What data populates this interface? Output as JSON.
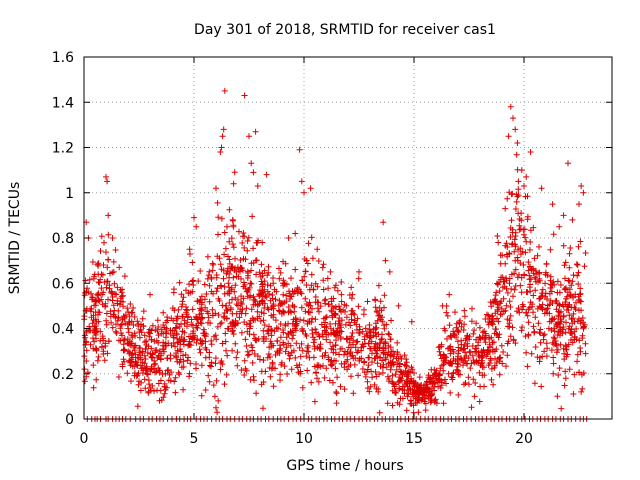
{
  "chart_data": {
    "type": "scatter",
    "title": "Day 301 of 2018, SRMTID for receiver cas1",
    "xlabel": "GPS time / hours",
    "ylabel": "SRMTID / TECUs",
    "xlim": [
      0,
      24
    ],
    "ylim": [
      0,
      1.6
    ],
    "xticks": [
      0,
      5,
      10,
      15,
      20
    ],
    "xtick_labels": [
      "0",
      "5",
      "10",
      "15",
      "20"
    ],
    "yticks": [
      0,
      0.2,
      0.4,
      0.6,
      0.8,
      1.0,
      1.2,
      1.4,
      1.6
    ],
    "ytick_labels": [
      "0",
      "0.2",
      "0.4",
      "0.6",
      "0.8",
      "1",
      "1.2",
      "1.4",
      "1.6"
    ],
    "grid": true,
    "marker": "+",
    "color": "#dd0000",
    "series": [
      {
        "name": "SRMTID",
        "profile": [
          [
            0.0,
            0.4,
            0.12
          ],
          [
            0.5,
            0.42,
            0.12
          ],
          [
            1.0,
            0.5,
            0.15
          ],
          [
            1.5,
            0.5,
            0.13
          ],
          [
            2.0,
            0.33,
            0.09
          ],
          [
            2.5,
            0.3,
            0.09
          ],
          [
            3.0,
            0.27,
            0.09
          ],
          [
            3.5,
            0.28,
            0.09
          ],
          [
            4.0,
            0.32,
            0.1
          ],
          [
            4.5,
            0.38,
            0.12
          ],
          [
            5.0,
            0.45,
            0.13
          ],
          [
            5.5,
            0.4,
            0.14
          ],
          [
            6.0,
            0.5,
            0.2
          ],
          [
            6.5,
            0.55,
            0.18
          ],
          [
            7.0,
            0.55,
            0.18
          ],
          [
            7.5,
            0.52,
            0.17
          ],
          [
            8.0,
            0.48,
            0.15
          ],
          [
            8.5,
            0.42,
            0.14
          ],
          [
            9.0,
            0.45,
            0.14
          ],
          [
            9.5,
            0.45,
            0.15
          ],
          [
            10.0,
            0.48,
            0.15
          ],
          [
            10.5,
            0.42,
            0.13
          ],
          [
            11.0,
            0.4,
            0.12
          ],
          [
            11.5,
            0.38,
            0.12
          ],
          [
            12.0,
            0.36,
            0.11
          ],
          [
            12.5,
            0.33,
            0.1
          ],
          [
            13.0,
            0.3,
            0.09
          ],
          [
            13.5,
            0.38,
            0.14
          ],
          [
            14.0,
            0.25,
            0.08
          ],
          [
            14.5,
            0.17,
            0.06
          ],
          [
            15.0,
            0.13,
            0.04
          ],
          [
            15.5,
            0.11,
            0.03
          ],
          [
            16.0,
            0.16,
            0.05
          ],
          [
            16.5,
            0.32,
            0.09
          ],
          [
            17.0,
            0.3,
            0.09
          ],
          [
            17.5,
            0.3,
            0.09
          ],
          [
            18.0,
            0.28,
            0.08
          ],
          [
            18.5,
            0.32,
            0.09
          ],
          [
            19.0,
            0.55,
            0.18
          ],
          [
            19.5,
            0.75,
            0.2
          ],
          [
            20.0,
            0.7,
            0.2
          ],
          [
            20.5,
            0.55,
            0.17
          ],
          [
            21.0,
            0.45,
            0.15
          ],
          [
            21.5,
            0.42,
            0.15
          ],
          [
            22.0,
            0.45,
            0.15
          ],
          [
            22.5,
            0.5,
            0.17
          ],
          [
            22.8,
            0.5,
            0.17
          ]
        ],
        "outliers": [
          [
            0.1,
            0.87
          ],
          [
            0.2,
            0.8
          ],
          [
            0.6,
            0.55
          ],
          [
            1.0,
            1.07
          ],
          [
            1.05,
            1.05
          ],
          [
            1.1,
            0.9
          ],
          [
            1.3,
            0.8
          ],
          [
            1.6,
            0.67
          ],
          [
            3.0,
            0.55
          ],
          [
            3.6,
            0.47
          ],
          [
            4.8,
            0.75
          ],
          [
            5.0,
            0.89
          ],
          [
            5.1,
            0.85
          ],
          [
            5.8,
            0.25
          ],
          [
            5.9,
            0.15
          ],
          [
            5.95,
            0.1
          ],
          [
            6.0,
            0.05
          ],
          [
            6.05,
            0.03
          ],
          [
            6.1,
            0.08
          ],
          [
            6.0,
            1.02
          ],
          [
            6.2,
            1.18
          ],
          [
            6.25,
            1.2
          ],
          [
            6.3,
            1.25
          ],
          [
            6.35,
            1.28
          ],
          [
            6.4,
            1.45
          ],
          [
            6.5,
            0.85
          ],
          [
            6.8,
            1.04
          ],
          [
            7.3,
            1.43
          ],
          [
            7.5,
            1.25
          ],
          [
            7.6,
            1.13
          ],
          [
            7.7,
            1.09
          ],
          [
            7.8,
            1.27
          ],
          [
            7.9,
            1.03
          ],
          [
            8.1,
            0.78
          ],
          [
            8.3,
            1.08
          ],
          [
            8.6,
            0.6
          ],
          [
            9.3,
            0.8
          ],
          [
            9.6,
            0.82
          ],
          [
            9.8,
            1.19
          ],
          [
            9.9,
            1.05
          ],
          [
            10.0,
            1.0
          ],
          [
            10.3,
            1.02
          ],
          [
            10.6,
            0.75
          ],
          [
            11.2,
            0.65
          ],
          [
            11.7,
            0.55
          ],
          [
            12.2,
            0.55
          ],
          [
            12.5,
            0.65
          ],
          [
            13.6,
            0.87
          ],
          [
            13.7,
            0.7
          ],
          [
            13.9,
            0.65
          ],
          [
            14.3,
            0.5
          ],
          [
            14.9,
            0.43
          ],
          [
            15.2,
            0.03
          ],
          [
            16.3,
            0.5
          ],
          [
            16.6,
            0.55
          ],
          [
            19.3,
            1.25
          ],
          [
            19.4,
            1.38
          ],
          [
            19.5,
            1.33
          ],
          [
            19.6,
            1.28
          ],
          [
            19.7,
            1.22
          ],
          [
            19.9,
            1.1
          ],
          [
            20.0,
            1.03
          ],
          [
            20.1,
            1.07
          ],
          [
            20.3,
            1.18
          ],
          [
            20.8,
            1.02
          ],
          [
            21.3,
            0.95
          ],
          [
            21.6,
            0.85
          ],
          [
            21.8,
            0.9
          ],
          [
            22.0,
            1.13
          ],
          [
            22.2,
            0.88
          ],
          [
            22.5,
            0.95
          ],
          [
            22.6,
            1.03
          ],
          [
            22.7,
            1.0
          ],
          [
            22.6,
            0.12
          ],
          [
            21.9,
            0.18
          ]
        ],
        "zero_points_x": [
          0.15,
          0.35,
          0.5,
          0.6,
          0.75,
          1.0,
          1.1,
          1.3,
          1.45,
          1.6,
          1.75,
          1.9,
          2.1,
          2.35,
          2.55,
          2.7,
          2.95,
          3.1,
          3.3,
          3.45,
          3.6,
          3.8,
          4.0,
          4.2,
          4.35,
          4.55,
          4.7,
          4.85,
          5.1,
          5.3,
          5.45,
          5.6,
          5.8,
          6.0,
          6.15,
          6.3,
          6.5,
          6.65,
          6.85,
          7.05,
          7.2,
          7.4,
          7.55,
          7.7,
          7.9,
          8.05,
          8.25,
          8.4,
          8.6,
          8.8,
          8.95,
          9.1,
          9.3,
          9.5,
          9.65,
          9.85,
          10.0,
          10.2,
          10.35,
          10.55,
          10.7,
          10.9,
          11.05,
          11.25,
          11.4,
          11.6,
          11.75,
          11.95,
          12.1,
          12.3,
          12.5,
          12.65,
          12.85,
          13.0,
          13.2,
          13.35,
          13.55,
          13.7,
          13.9,
          14.05,
          14.25,
          14.4,
          14.6,
          14.75,
          14.95,
          15.1,
          15.3,
          15.5,
          15.65,
          15.85,
          16.0,
          16.2,
          16.35,
          16.55,
          16.7,
          16.9,
          17.05,
          17.25,
          17.4,
          17.6,
          17.8,
          17.95,
          18.1,
          18.3,
          18.5,
          18.65,
          18.85,
          19.0,
          19.2,
          19.35,
          19.55,
          19.7,
          19.9,
          20.05,
          20.25,
          20.4,
          20.6,
          20.75,
          20.95,
          21.1,
          21.3,
          21.45,
          21.65,
          21.8,
          22.0,
          22.15,
          22.35,
          22.55,
          22.7,
          22.85
        ],
        "approx_point_count": 2400
      }
    ]
  }
}
